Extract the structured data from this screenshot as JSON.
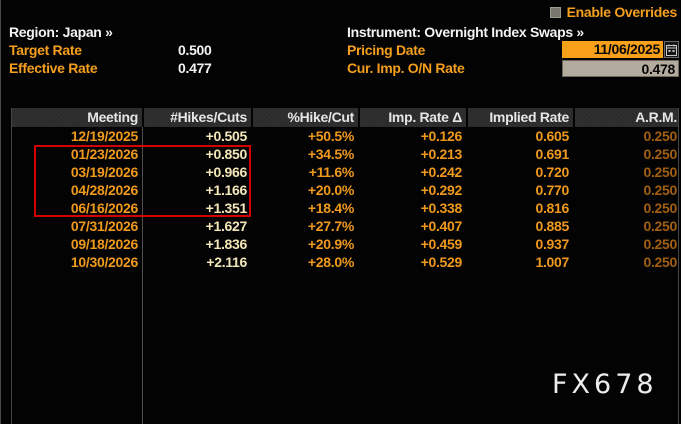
{
  "overrides": {
    "label": "Enable Overrides",
    "checked": false
  },
  "top": {
    "region": "Region: Japan »",
    "target_rate_label": "Target Rate",
    "target_rate_value": "0.500",
    "effective_rate_label": "Effective Rate",
    "effective_rate_value": "0.477",
    "instrument": "Instrument: Overnight Index Swaps »",
    "pricing_date_label": "Pricing Date",
    "pricing_date_value": "11/06/2025",
    "cur_imp_on_rate_label": "Cur. Imp. O/N Rate",
    "cur_imp_on_rate_value": "0.478"
  },
  "table": {
    "columns": [
      "Meeting",
      "#Hikes/Cuts",
      "%Hike/Cut",
      "Imp. Rate Δ",
      "Implied Rate",
      "A.R.M."
    ],
    "rows": [
      [
        "12/19/2025",
        "+0.505",
        "+50.5%",
        "+0.126",
        "0.605",
        "0.250"
      ],
      [
        "01/23/2026",
        "+0.850",
        "+34.5%",
        "+0.213",
        "0.691",
        "0.250"
      ],
      [
        "03/19/2026",
        "+0.966",
        "+11.6%",
        "+0.242",
        "0.720",
        "0.250"
      ],
      [
        "04/28/2026",
        "+1.166",
        "+20.0%",
        "+0.292",
        "0.770",
        "0.250"
      ],
      [
        "06/16/2026",
        "+1.351",
        "+18.4%",
        "+0.338",
        "0.816",
        "0.250"
      ],
      [
        "07/31/2026",
        "+1.627",
        "+27.7%",
        "+0.407",
        "0.885",
        "0.250"
      ],
      [
        "09/18/2026",
        "+1.836",
        "+20.9%",
        "+0.459",
        "0.937",
        "0.250"
      ],
      [
        "10/30/2026",
        "+2.116",
        "+28.0%",
        "+0.529",
        "1.007",
        "0.250"
      ]
    ],
    "highlighted_rows": [
      1,
      2,
      3
    ]
  },
  "watermark": "FX678",
  "colors": {
    "amber": "#f59f1e",
    "date_field_bg": "#f9a01b",
    "rate_field_bg": "#b3ab9d",
    "highlight_border": "#d40000",
    "arm_dim": "#a05f12",
    "hikes_cream": "#f3e6b8"
  }
}
